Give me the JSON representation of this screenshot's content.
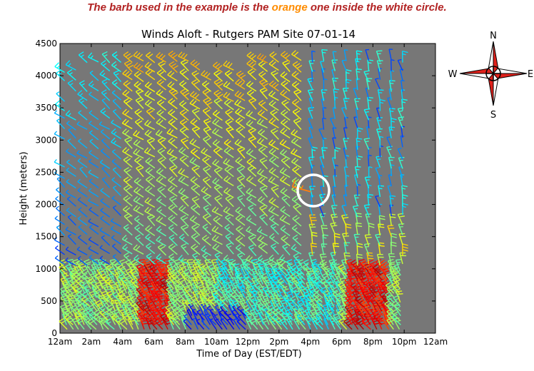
{
  "banner": {
    "before": "The barb used in the example is the ",
    "highlight": "orange",
    "after": " one inside the white circle."
  },
  "chart_data": {
    "type": "wind-barb",
    "title": "Winds Aloft - Rutgers PAM Site 07-01-14",
    "xlabel": "Time of Day (EST/EDT)",
    "ylabel": "Height (meters)",
    "xlim": [
      0,
      24
    ],
    "ylim": [
      0,
      4500
    ],
    "x_ticks": [
      "12am",
      "2am",
      "4am",
      "6am",
      "8am",
      "10am",
      "12pm",
      "2pm",
      "4pm",
      "6pm",
      "8pm",
      "10pm",
      "12am"
    ],
    "y_ticks": [
      "0",
      "500",
      "1000",
      "1500",
      "2000",
      "2500",
      "3000",
      "3500",
      "4000",
      "4500"
    ],
    "background_color": "#777777",
    "highlight": {
      "time_hours": 15.4,
      "height_m": 2230,
      "marker": "white circle",
      "barb_color": "#ff7f0e"
    },
    "colormap": [
      "#00007f",
      "#0000ff",
      "#007fff",
      "#00ffff",
      "#7fff7f",
      "#ffff00",
      "#ff7f00",
      "#ff0000",
      "#7f0000"
    ]
  },
  "compass": {
    "n": "N",
    "s": "S",
    "e": "E",
    "w": "W"
  }
}
